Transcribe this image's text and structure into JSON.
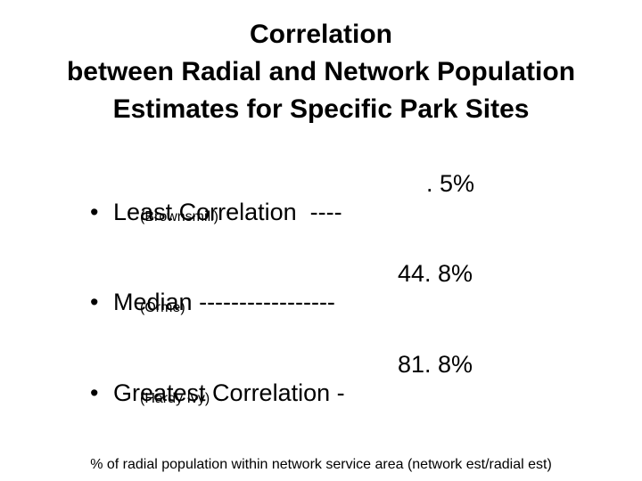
{
  "slide": {
    "title_lines": [
      "Correlation",
      "between Radial and Network Population",
      "Estimates for Specific Park Sites"
    ],
    "bullets": [
      {
        "marker": "•",
        "label": "Least Correlation  ----",
        "value": ". 5%",
        "site": "(Brownsmill)"
      },
      {
        "marker": "•",
        "label": "Median -----------------",
        "value": "44. 8%",
        "site": "(Orme)"
      },
      {
        "marker": "•",
        "label": "Greatest Correlation -",
        "value": "81. 8%",
        "site": "(Hardy Ivy)"
      }
    ],
    "footnote": "% of radial population within network  service area (network est/radial est)"
  }
}
